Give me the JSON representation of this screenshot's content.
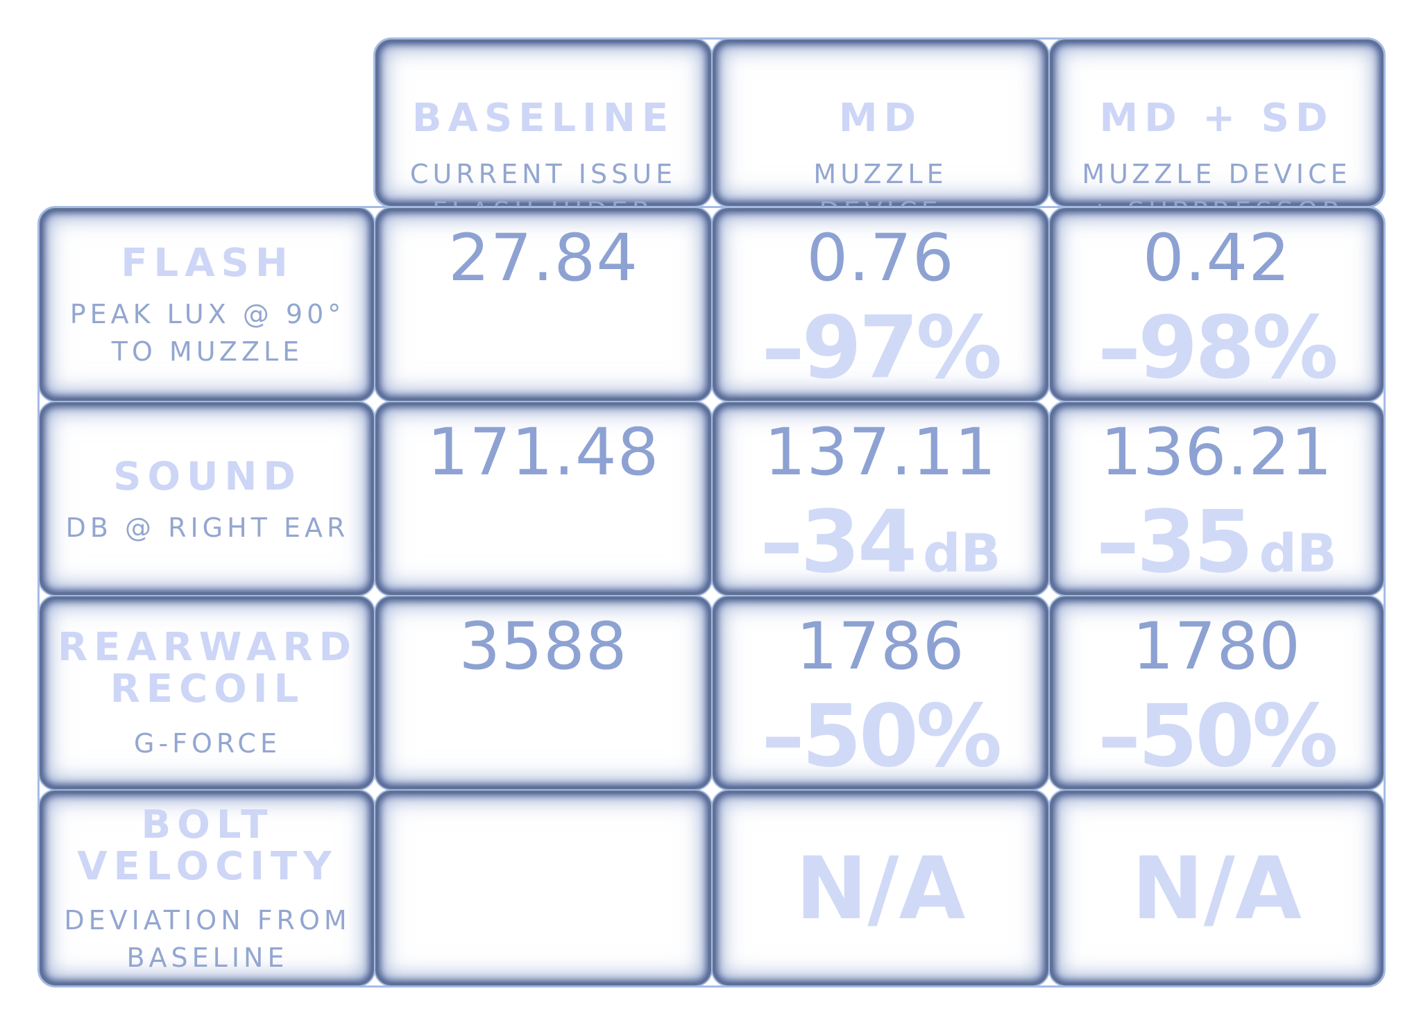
{
  "chart_data": {
    "type": "table",
    "columns": [
      {
        "title": "BASELINE",
        "subtitle": [
          "CURRENT ISSUE",
          "FLASH HIDER"
        ]
      },
      {
        "title": "MD",
        "subtitle": [
          "MUZZLE",
          "DEVICE"
        ]
      },
      {
        "title": "MD + SD",
        "subtitle": [
          "MUZZLE DEVICE",
          "+ SUPPRESSOR"
        ]
      }
    ],
    "rows": [
      {
        "title": [
          "FLASH"
        ],
        "subtitle": [
          "PEAK LUX @ 90°",
          "TO MUZZLE"
        ],
        "values": [
          "27.84",
          "0.76",
          "0.42"
        ],
        "deltas": [
          "",
          "–97%",
          "–98%"
        ],
        "delta_units": [
          "",
          "",
          ""
        ]
      },
      {
        "title": [
          "SOUND"
        ],
        "subtitle": [
          "DB @ RIGHT EAR"
        ],
        "values": [
          "171.48",
          "137.11",
          "136.21"
        ],
        "deltas": [
          "",
          "–34",
          "–35"
        ],
        "delta_units": [
          "",
          "dB",
          "dB"
        ]
      },
      {
        "title": [
          "REARWARD",
          "RECOIL"
        ],
        "subtitle": [
          "G-FORCE"
        ],
        "values": [
          "3588",
          "1786",
          "1780"
        ],
        "deltas": [
          "",
          "–50%",
          "–50%"
        ],
        "delta_units": [
          "",
          "",
          ""
        ]
      },
      {
        "title": [
          "BOLT",
          "VELOCITY"
        ],
        "subtitle": [
          "DEVIATION FROM",
          "BASELINE"
        ],
        "values": [
          "",
          "",
          ""
        ],
        "na": [
          "",
          "N/A",
          "N/A"
        ]
      }
    ]
  },
  "colors": {
    "title_text": "#cdd6f6",
    "subtitle_text": "#93a6d0",
    "value_text": "#8da2d2",
    "delta_text": "#d0daf7",
    "grid_line": "#a5bbe4",
    "cell_edge": "#5f7196"
  }
}
